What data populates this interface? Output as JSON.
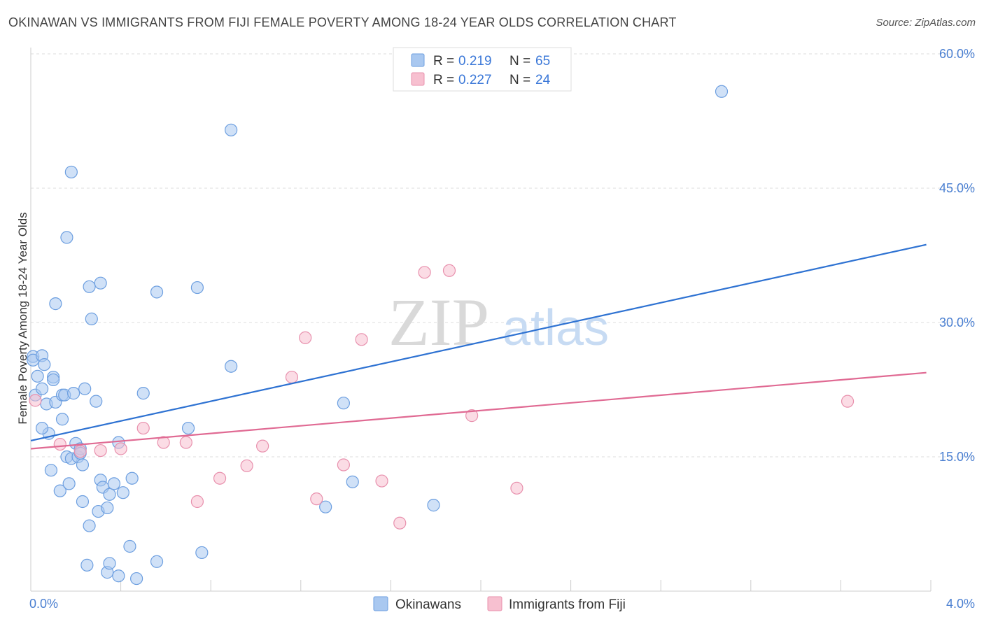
{
  "header": {
    "title": "OKINAWAN VS IMMIGRANTS FROM FIJI FEMALE POVERTY AMONG 18-24 YEAR OLDS CORRELATION CHART",
    "source": "Source: ZipAtlas.com"
  },
  "watermark": {
    "zip": "ZIP",
    "atlas": "atlas"
  },
  "legend": {
    "r_label": "R =",
    "n_label": "N =",
    "rows": [
      {
        "r": "0.219",
        "n": "65"
      },
      {
        "r": "0.227",
        "n": "24"
      }
    ]
  },
  "colors": {
    "blue_fill": "#a9c8f0",
    "blue_stroke": "#6d9fe0",
    "blue_line": "#2e72d2",
    "pink_fill": "#f7c0d0",
    "pink_stroke": "#e890ad",
    "pink_line": "#e06a93",
    "grid": "#dddddd",
    "tick_text": "#4a7fd1"
  },
  "chart_data": {
    "type": "scatter",
    "title": "OKINAWAN VS IMMIGRANTS FROM FIJI FEMALE POVERTY AMONG 18-24 YEAR OLDS CORRELATION CHART",
    "ylabel": "Female Poverty Among 18-24 Year Olds",
    "xlabel": "",
    "xlim": [
      0,
      4.0
    ],
    "ylim": [
      0,
      60
    ],
    "x_tick_labels": [
      "0.0%",
      "4.0%"
    ],
    "y_tick_labels": [
      "15.0%",
      "30.0%",
      "45.0%",
      "60.0%"
    ],
    "y_ticks": [
      15,
      30,
      45,
      60
    ],
    "grid": true,
    "legend_position": "top-center",
    "series": [
      {
        "name": "Okinawans",
        "r": 0.219,
        "n": 65,
        "trend": {
          "x": [
            0.0,
            3.98
          ],
          "y": [
            16.8,
            38.7
          ]
        },
        "points": [
          [
            0.01,
            26.2
          ],
          [
            0.01,
            25.8
          ],
          [
            0.02,
            21.9
          ],
          [
            0.03,
            24.0
          ],
          [
            0.05,
            22.6
          ],
          [
            0.05,
            26.3
          ],
          [
            0.06,
            25.3
          ],
          [
            0.07,
            20.9
          ],
          [
            0.08,
            17.6
          ],
          [
            0.05,
            18.2
          ],
          [
            0.09,
            13.5
          ],
          [
            0.1,
            23.9
          ],
          [
            0.1,
            23.6
          ],
          [
            0.11,
            21.1
          ],
          [
            0.11,
            32.1
          ],
          [
            0.13,
            11.2
          ],
          [
            0.14,
            19.2
          ],
          [
            0.14,
            21.9
          ],
          [
            0.15,
            21.9
          ],
          [
            0.16,
            15.0
          ],
          [
            0.16,
            39.5
          ],
          [
            0.17,
            12.0
          ],
          [
            0.18,
            14.8
          ],
          [
            0.18,
            46.8
          ],
          [
            0.19,
            22.1
          ],
          [
            0.2,
            16.5
          ],
          [
            0.21,
            15.0
          ],
          [
            0.22,
            15.9
          ],
          [
            0.22,
            15.4
          ],
          [
            0.23,
            10.0
          ],
          [
            0.23,
            14.1
          ],
          [
            0.24,
            22.6
          ],
          [
            0.25,
            2.9
          ],
          [
            0.26,
            7.3
          ],
          [
            0.26,
            34.0
          ],
          [
            0.27,
            30.4
          ],
          [
            0.29,
            21.2
          ],
          [
            0.3,
            8.9
          ],
          [
            0.31,
            34.4
          ],
          [
            0.31,
            12.4
          ],
          [
            0.32,
            11.6
          ],
          [
            0.34,
            2.1
          ],
          [
            0.34,
            9.3
          ],
          [
            0.35,
            3.1
          ],
          [
            0.35,
            10.8
          ],
          [
            0.37,
            12.0
          ],
          [
            0.39,
            16.6
          ],
          [
            0.39,
            1.7
          ],
          [
            0.41,
            11.0
          ],
          [
            0.44,
            5.0
          ],
          [
            0.45,
            12.6
          ],
          [
            0.47,
            1.4
          ],
          [
            0.5,
            22.1
          ],
          [
            0.56,
            33.4
          ],
          [
            0.56,
            3.3
          ],
          [
            0.7,
            18.2
          ],
          [
            0.74,
            33.9
          ],
          [
            0.76,
            4.3
          ],
          [
            0.89,
            51.5
          ],
          [
            0.89,
            25.1
          ],
          [
            1.31,
            9.4
          ],
          [
            1.39,
            21.0
          ],
          [
            1.43,
            12.2
          ],
          [
            1.79,
            9.6
          ],
          [
            3.07,
            55.8
          ]
        ]
      },
      {
        "name": "Immigrants from Fiji",
        "r": 0.227,
        "n": 24,
        "trend": {
          "x": [
            0.0,
            3.98
          ],
          "y": [
            15.9,
            24.4
          ]
        },
        "points": [
          [
            0.02,
            21.3
          ],
          [
            0.13,
            16.4
          ],
          [
            0.22,
            15.6
          ],
          [
            0.31,
            15.7
          ],
          [
            0.4,
            15.9
          ],
          [
            0.5,
            18.2
          ],
          [
            0.59,
            16.6
          ],
          [
            0.69,
            16.6
          ],
          [
            0.74,
            10.0
          ],
          [
            0.84,
            12.6
          ],
          [
            0.96,
            14.0
          ],
          [
            1.03,
            16.2
          ],
          [
            1.16,
            23.9
          ],
          [
            1.27,
            10.3
          ],
          [
            1.22,
            28.3
          ],
          [
            1.39,
            14.1
          ],
          [
            1.47,
            28.1
          ],
          [
            1.56,
            12.3
          ],
          [
            1.64,
            7.6
          ],
          [
            1.75,
            35.6
          ],
          [
            1.86,
            35.8
          ],
          [
            1.96,
            19.6
          ],
          [
            2.16,
            11.5
          ],
          [
            3.63,
            21.2
          ]
        ]
      }
    ]
  }
}
